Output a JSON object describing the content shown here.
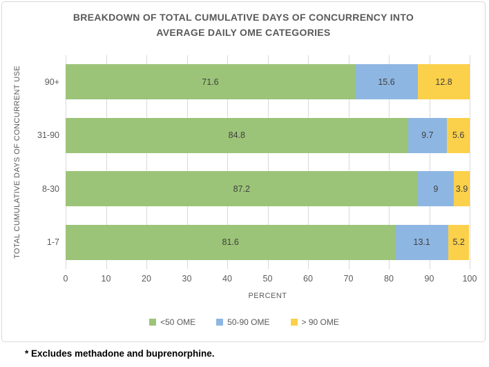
{
  "title": {
    "line1": "BREAKDOWN OF TOTAL CUMULATIVE DAYS OF CONCURRENCY INTO",
    "line2": "AVERAGE DAILY OME CATEGORIES"
  },
  "footnote": "* Excludes methadone and buprenorphine.",
  "chart_data": {
    "type": "bar",
    "orientation": "horizontal",
    "stacked": true,
    "title": "BREAKDOWN OF TOTAL CUMULATIVE DAYS OF CONCURRENCY INTO AVERAGE DAILY OME CATEGORIES",
    "xlabel": "PERCENT",
    "ylabel": "TOTAL CUMULATIVE DAYS OF CONCURRENT USE",
    "categories": [
      "90+",
      "31-90",
      "8-30",
      "1-7"
    ],
    "series": [
      {
        "name": "<50 OME",
        "color": "#9cc478",
        "values": [
          71.6,
          84.8,
          87.2,
          81.6
        ]
      },
      {
        "name": "50-90 OME",
        "color": "#8eb6e2",
        "values": [
          15.6,
          9.7,
          9.0,
          13.1
        ]
      },
      {
        "name": "> 90 OME",
        "color": "#fbd04a",
        "values": [
          12.8,
          5.6,
          3.9,
          5.2
        ]
      }
    ],
    "value_labels": [
      [
        "71.6",
        "15.6",
        "12.8"
      ],
      [
        "84.8",
        "9.7",
        "5.6"
      ],
      [
        "87.2",
        "9",
        "3.9"
      ],
      [
        "81.6",
        "13.1",
        "5.2"
      ]
    ],
    "xlim": [
      0,
      100
    ],
    "xticks": [
      "0",
      "10",
      "20",
      "30",
      "40",
      "50",
      "60",
      "70",
      "80",
      "90",
      "100"
    ],
    "grid": true,
    "legend_position": "bottom",
    "colors": {
      "gridline": "#d9d9d9",
      "border": "#d8d8d8",
      "axis_text": "#595959",
      "value_text": "#3f3f3f"
    }
  }
}
